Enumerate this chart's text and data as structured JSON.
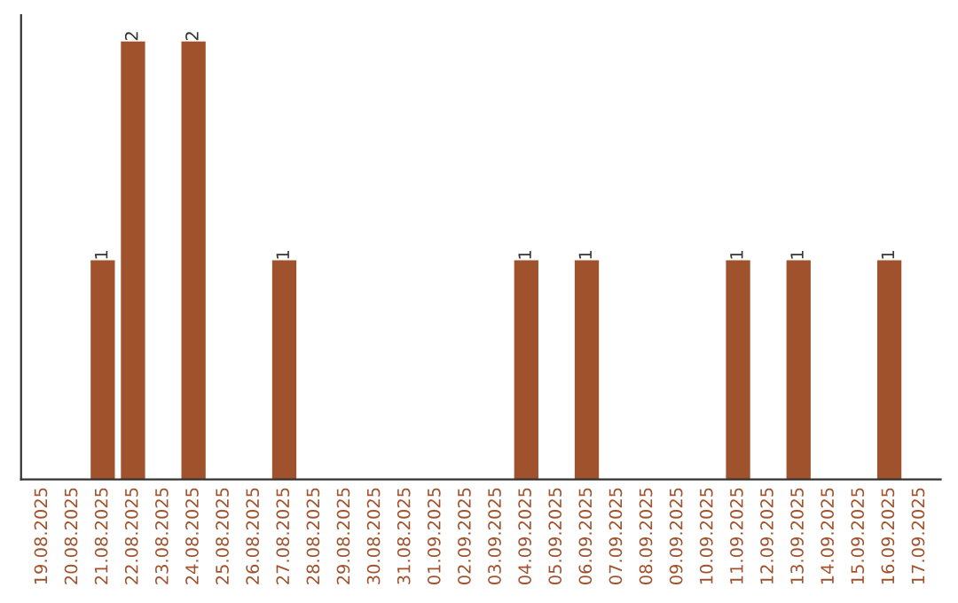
{
  "chart_data": {
    "type": "bar",
    "categories": [
      "19.08.2025",
      "20.08.2025",
      "21.08.2025",
      "22.08.2025",
      "23.08.2025",
      "24.08.2025",
      "25.08.2025",
      "26.08.2025",
      "27.08.2025",
      "28.08.2025",
      "29.08.2025",
      "30.08.2025",
      "31.08.2025",
      "01.09.2025",
      "02.09.2025",
      "03.09.2025",
      "04.09.2025",
      "05.09.2025",
      "06.09.2025",
      "07.09.2025",
      "08.09.2025",
      "09.09.2025",
      "10.09.2025",
      "11.09.2025",
      "12.09.2025",
      "13.09.2025",
      "14.09.2025",
      "15.09.2025",
      "16.09.2025",
      "17.09.2025"
    ],
    "values": [
      0,
      0,
      1,
      2,
      0,
      2,
      0,
      0,
      1,
      0,
      0,
      0,
      0,
      0,
      0,
      0,
      1,
      0,
      1,
      0,
      0,
      0,
      0,
      1,
      0,
      1,
      0,
      0,
      1,
      0
    ],
    "value_labels": [
      null,
      null,
      "1",
      "2",
      null,
      "2",
      null,
      null,
      "1",
      null,
      null,
      null,
      null,
      null,
      null,
      null,
      "1",
      null,
      "1",
      null,
      null,
      null,
      null,
      "1",
      null,
      "1",
      null,
      null,
      "1",
      null
    ],
    "color": "#a0522d",
    "grid": false,
    "legend": false
  }
}
